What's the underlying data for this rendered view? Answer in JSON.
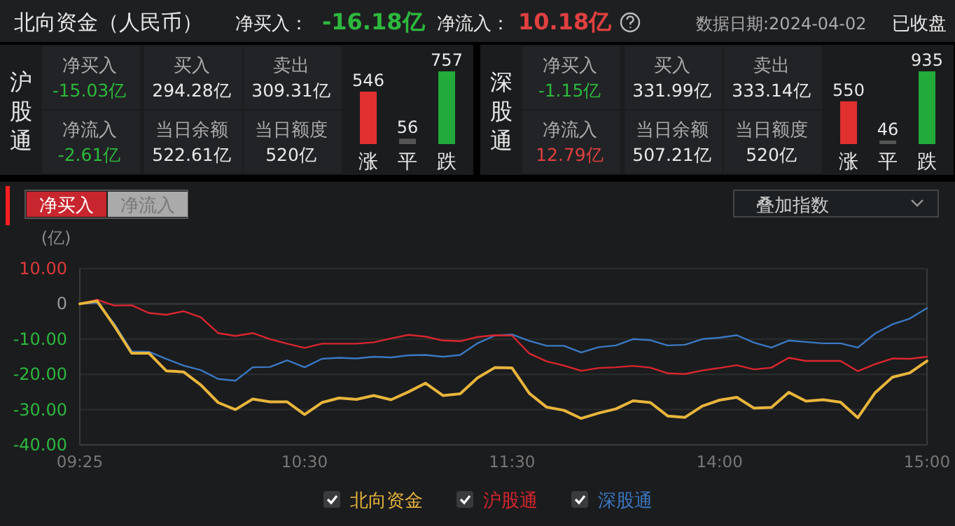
{
  "chart_data": [
    {
      "type": "other",
      "title": "北向资金（人民币）",
      "annotations": [
        "净买入：",
        "-16.18亿",
        "净流入：",
        "10.18亿",
        "数据日期:2024-04-02",
        "已收盘"
      ]
    },
    {
      "type": "other",
      "title": "沪股通",
      "annotations": [
        "净买入",
        "-15.03亿",
        "买入",
        "294.28亿",
        "卖出",
        "309.31亿",
        "净流入",
        "-2.61亿",
        "当日余额",
        "522.61亿",
        "当日额度",
        "520亿"
      ]
    },
    {
      "type": "bar",
      "categories": [
        "涨",
        "平",
        "跌"
      ],
      "values": [
        546,
        56,
        757
      ],
      "colors": [
        "#e03030",
        "#555555",
        "#22aa3a"
      ],
      "data_labels": true
    },
    {
      "type": "other",
      "title": "深股通",
      "annotations": [
        "净买入",
        "-1.15亿",
        "买入",
        "331.99亿",
        "卖出",
        "333.14亿",
        "净流入",
        "12.79亿",
        "当日余额",
        "507.21亿",
        "当日额度",
        "520亿"
      ]
    },
    {
      "type": "bar",
      "categories": [
        "涨",
        "平",
        "跌"
      ],
      "values": [
        550,
        46,
        935
      ],
      "colors": [
        "#e03030",
        "#555555",
        "#22aa3a"
      ],
      "data_labels": true
    },
    {
      "type": "line",
      "ylabel": "(亿)",
      "annotations": [
        "净买入",
        "净流入",
        "叠加指数"
      ],
      "ylim": [
        -40,
        10
      ],
      "categories": [
        "09:25",
        null,
        null,
        null,
        null,
        null,
        null,
        null,
        null,
        null,
        null,
        null,
        null,
        "10:30",
        null,
        null,
        null,
        null,
        null,
        null,
        null,
        null,
        null,
        null,
        null,
        "11:30",
        null,
        null,
        null,
        null,
        null,
        null,
        null,
        null,
        null,
        null,
        null,
        "14:00",
        null,
        null,
        null,
        null,
        null,
        null,
        null,
        null,
        null,
        null,
        null,
        "15:00"
      ],
      "yticks": [
        {
          "value": 10,
          "label": "10.00"
        },
        0,
        {
          "value": -10,
          "label": "-10.00"
        },
        {
          "value": -20,
          "label": "-20.00"
        },
        {
          "value": -30,
          "label": "-30.00"
        },
        {
          "value": -40,
          "label": "-40.00"
        }
      ],
      "grid": "y",
      "legend": "bottom",
      "series": [
        {
          "name": "北向资金",
          "color": "#e8b53c",
          "values": [
            0,
            0.8,
            -6.3,
            -14,
            -14,
            -19,
            -19.3,
            -23,
            -28,
            -30,
            -27,
            -27.8,
            -27.8,
            -31.4,
            -28,
            -26.7,
            -27.1,
            -26,
            -27.2,
            -25,
            -22.5,
            -26,
            -25.5,
            -21,
            -18.1,
            -18.2,
            -25.4,
            -29.3,
            -30.2,
            -32.5,
            -31,
            -29.8,
            -27.5,
            -28,
            -31.8,
            -32.2,
            -29,
            -27.3,
            -26.5,
            -29.6,
            -29.4,
            -25.1,
            -27.6,
            -27.2,
            -27.9,
            -32.3,
            -25.2,
            -20.8,
            -19.6,
            -16.2
          ]
        },
        {
          "name": "沪股通",
          "color": "#d9262e",
          "values": [
            0,
            1.2,
            -0.5,
            -0.4,
            -2.6,
            -3.1,
            -2.1,
            -3.8,
            -8.3,
            -9.1,
            -8.3,
            -10,
            -11.3,
            -12.5,
            -11.3,
            -11.3,
            -11.3,
            -10.9,
            -9.8,
            -8.8,
            -9.3,
            -10.4,
            -10.6,
            -9.4,
            -8.9,
            -9,
            -14.1,
            -16.3,
            -17.5,
            -19,
            -18.2,
            -18,
            -17.6,
            -18.1,
            -19.7,
            -19.9,
            -18.9,
            -18.2,
            -17.4,
            -18.6,
            -18.1,
            -15.3,
            -16.2,
            -16.2,
            -16.2,
            -19.1,
            -17.1,
            -15.5,
            -15.6,
            -15
          ]
        },
        {
          "name": "深股通",
          "color": "#3a78c2",
          "values": [
            0,
            0.3,
            -5.7,
            -13.5,
            -13.6,
            -15.6,
            -17.5,
            -18.8,
            -21.3,
            -21.8,
            -18,
            -17.9,
            -16,
            -18,
            -15.6,
            -15.3,
            -15.5,
            -15,
            -15.2,
            -14.6,
            -14.5,
            -15,
            -14.5,
            -11.2,
            -9,
            -8.7,
            -10.5,
            -11.9,
            -11.9,
            -13.8,
            -12.3,
            -11.8,
            -10,
            -10.3,
            -11.8,
            -11.6,
            -10,
            -9.6,
            -8.9,
            -11,
            -12.4,
            -10.4,
            -10.8,
            -11.2,
            -11.2,
            -12.4,
            -8.4,
            -5.8,
            -4.2,
            -1.2
          ]
        }
      ]
    }
  ]
}
